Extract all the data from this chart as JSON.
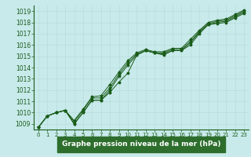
{
  "title": "Graphe pression niveau de la mer (hPa)",
  "bg_color": "#c8eaea",
  "grid_color": "#a8d4d4",
  "line_color": "#1a5c1a",
  "xlim": [
    -0.5,
    23.5
  ],
  "ylim": [
    1008.5,
    1019.5
  ],
  "yticks": [
    1009,
    1010,
    1011,
    1012,
    1013,
    1014,
    1015,
    1016,
    1017,
    1018,
    1019
  ],
  "xticks": [
    0,
    1,
    2,
    3,
    4,
    5,
    6,
    7,
    8,
    9,
    10,
    11,
    12,
    13,
    14,
    15,
    16,
    17,
    18,
    19,
    20,
    21,
    22,
    23
  ],
  "series": [
    [
      1008.7,
      1009.7,
      1010.0,
      1010.2,
      1009.0,
      1010.0,
      1011.1,
      1011.1,
      1011.8,
      1012.7,
      1013.5,
      1015.1,
      1015.5,
      1015.3,
      1015.1,
      1015.5,
      1015.5,
      1016.0,
      1017.0,
      1017.8,
      1017.9,
      1018.0,
      1018.4,
      1018.8
    ],
    [
      1008.7,
      1009.7,
      1010.0,
      1010.2,
      1009.0,
      1010.0,
      1011.1,
      1011.1,
      1012.0,
      1013.2,
      1014.2,
      1015.1,
      1015.5,
      1015.3,
      1015.2,
      1015.5,
      1015.5,
      1016.2,
      1017.1,
      1017.8,
      1018.0,
      1018.1,
      1018.5,
      1018.9
    ],
    [
      1008.7,
      1009.7,
      1010.0,
      1010.2,
      1009.2,
      1010.2,
      1011.3,
      1011.3,
      1012.2,
      1013.4,
      1014.4,
      1015.2,
      1015.5,
      1015.3,
      1015.3,
      1015.6,
      1015.6,
      1016.3,
      1017.2,
      1017.9,
      1018.1,
      1018.2,
      1018.6,
      1019.0
    ],
    [
      1008.7,
      1009.7,
      1010.0,
      1010.2,
      1009.3,
      1010.3,
      1011.4,
      1011.5,
      1012.5,
      1013.6,
      1014.6,
      1015.3,
      1015.6,
      1015.4,
      1015.4,
      1015.7,
      1015.7,
      1016.5,
      1017.3,
      1018.0,
      1018.2,
      1018.3,
      1018.7,
      1019.1
    ]
  ],
  "title_fontsize": 6.5,
  "tick_fontsize": 5.5,
  "title_bg": "#2d6e2d",
  "title_fg": "#ffffff"
}
